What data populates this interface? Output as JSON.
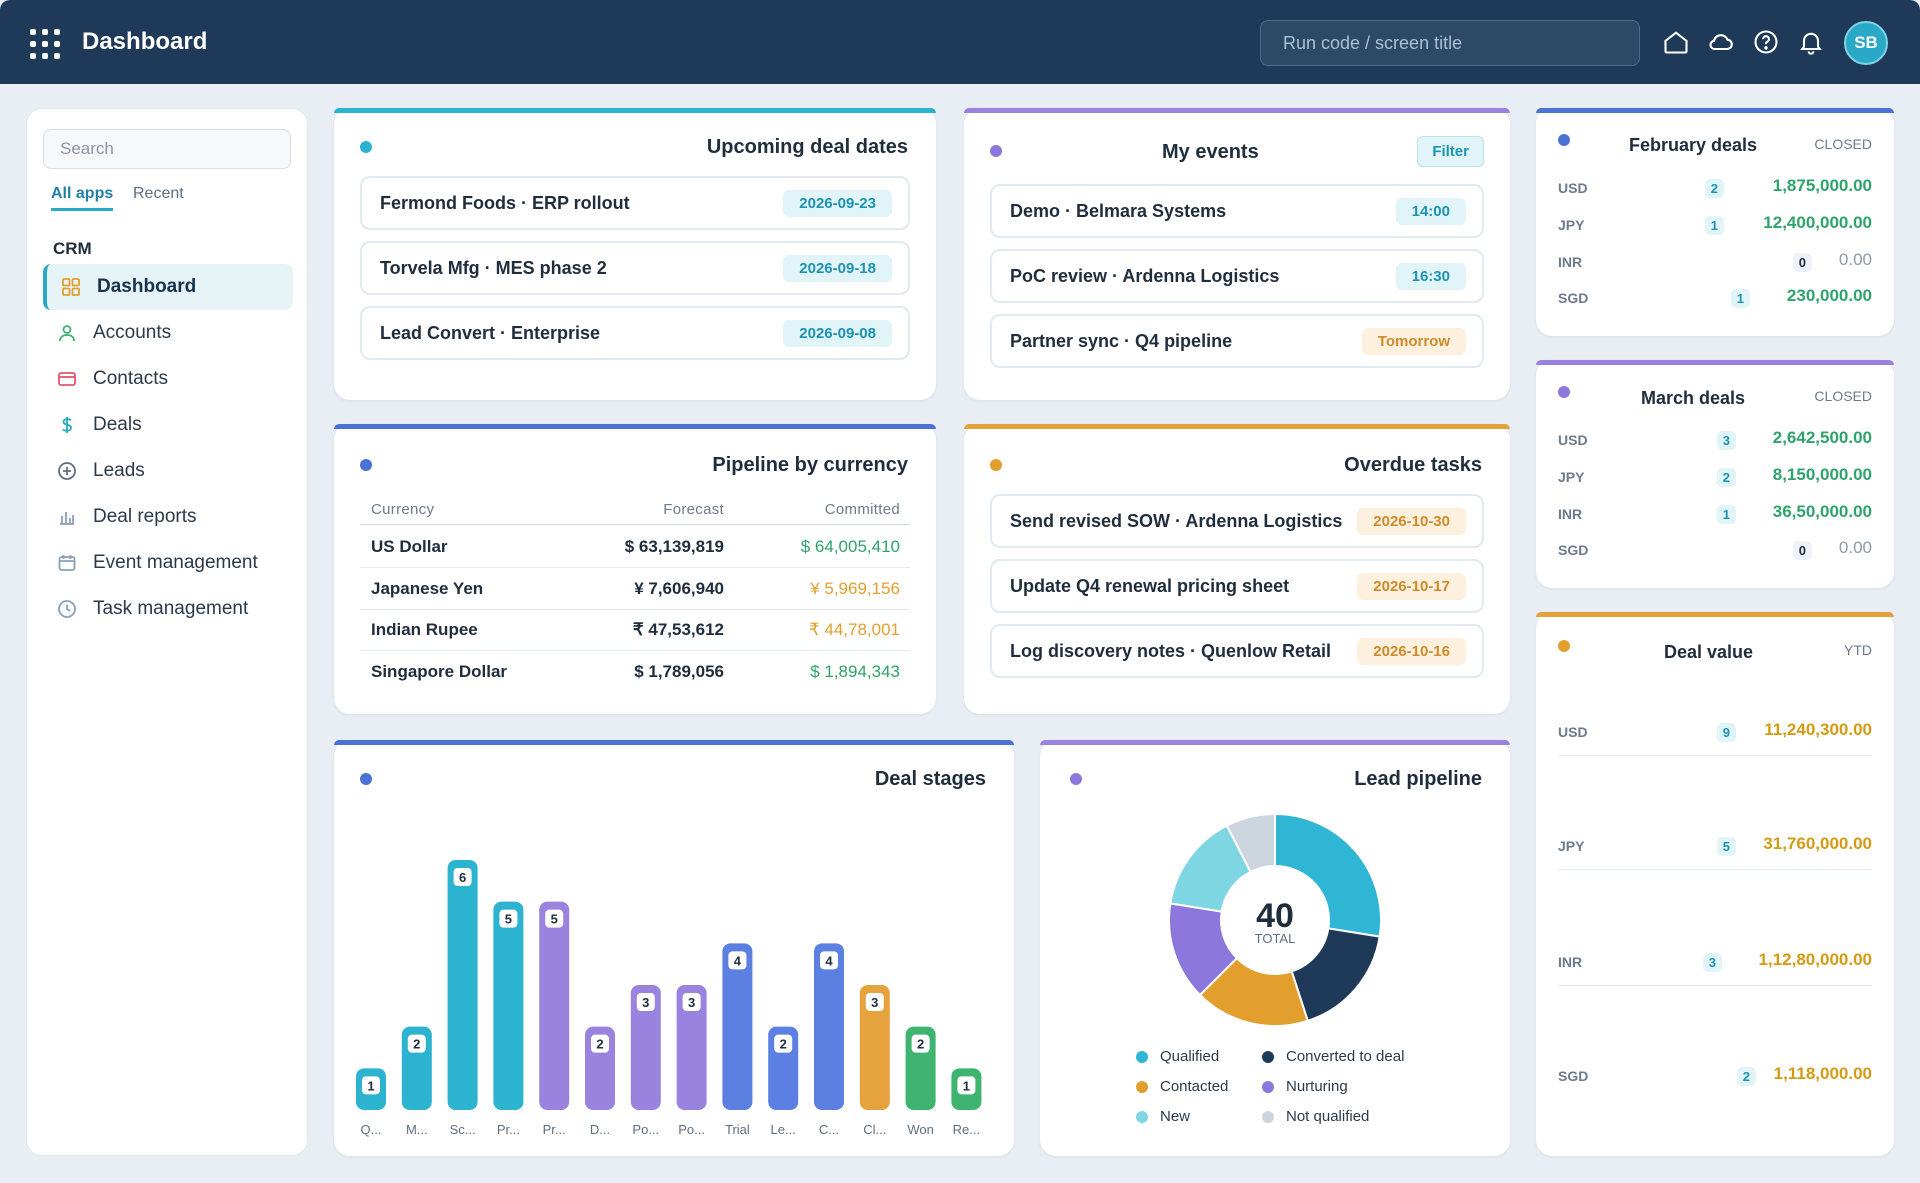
{
  "app": {
    "title": "Dashboard",
    "search_placeholder": "Run code / screen title",
    "avatar": "SB"
  },
  "sidebar": {
    "search_placeholder": "Search",
    "tabs": [
      "All apps",
      "Recent"
    ],
    "section": "CRM",
    "items": [
      {
        "label": "Dashboard",
        "icon": "dashboard-grid-icon",
        "active": true
      },
      {
        "label": "Accounts",
        "icon": "user-icon"
      },
      {
        "label": "Contacts",
        "icon": "contact-card-icon"
      },
      {
        "label": "Deals",
        "icon": "dollar-icon"
      },
      {
        "label": "Leads",
        "icon": "plus-circle-icon"
      },
      {
        "label": "Deal reports",
        "icon": "bar-chart-icon"
      },
      {
        "label": "Event management",
        "icon": "calendar-icon"
      },
      {
        "label": "Task management",
        "icon": "clock-icon"
      }
    ]
  },
  "upcoming": {
    "title": "Upcoming deal dates",
    "rows": [
      {
        "name": "Fermond Foods · ERP rollout",
        "date": "2026-09-23"
      },
      {
        "name": "Torvela Mfg · MES phase 2",
        "date": "2026-09-18"
      },
      {
        "name": "Lead Convert · Enterprise",
        "date": "2026-09-08"
      }
    ]
  },
  "events": {
    "title": "My events",
    "filter_label": "Filter",
    "rows": [
      {
        "name": "Demo · Belmara Systems",
        "time": "14:00"
      },
      {
        "name": "PoC review · Ardenna Logistics",
        "time": "16:30"
      },
      {
        "name": "Partner sync · Q4 pipeline",
        "time": "Tomorrow"
      }
    ]
  },
  "pipeline": {
    "title": "Pipeline by currency",
    "headers": [
      "Currency",
      "Forecast",
      "Committed"
    ],
    "rows": [
      {
        "currency": "US Dollar",
        "forecast": "$ 63,139,819",
        "committed": "$ 64,005,410"
      },
      {
        "currency": "Japanese Yen",
        "forecast": "¥ 7,606,940",
        "committed": "¥ 5,969,156"
      },
      {
        "currency": "Indian Rupee",
        "forecast": "₹ 47,53,612",
        "committed": "₹ 44,78,001"
      },
      {
        "currency": "Singapore Dollar",
        "forecast": "$ 1,789,056",
        "committed": "$ 1,894,343"
      }
    ]
  },
  "overdue": {
    "title": "Overdue tasks",
    "rows": [
      {
        "name": "Send revised SOW · Ardenna Logistics",
        "date": "2026-10-30"
      },
      {
        "name": "Update Q4 renewal pricing sheet",
        "date": "2026-10-17"
      },
      {
        "name": "Log discovery notes · Quenlow Retail",
        "date": "2026-10-16"
      }
    ]
  },
  "february": {
    "title": "February deals",
    "tag": "CLOSED",
    "rows": [
      {
        "code": "USD",
        "count": "2",
        "value": "1,875,000.00"
      },
      {
        "code": "JPY",
        "count": "1",
        "value": "12,400,000.00"
      },
      {
        "code": "INR",
        "count": "0",
        "value": "0.00"
      },
      {
        "code": "SGD",
        "count": "1",
        "value": "230,000.00"
      }
    ]
  },
  "march": {
    "title": "March deals",
    "tag": "CLOSED",
    "rows": [
      {
        "code": "USD",
        "count": "3",
        "value": "2,642,500.00"
      },
      {
        "code": "JPY",
        "count": "2",
        "value": "8,150,000.00"
      },
      {
        "code": "INR",
        "count": "1",
        "value": "36,50,000.00"
      },
      {
        "code": "SGD",
        "count": "0",
        "value": "0.00"
      }
    ]
  },
  "dealvalue": {
    "title": "Deal value",
    "tag": "YTD",
    "rows": [
      {
        "code": "USD",
        "count": "9",
        "value": "11,240,300.00"
      },
      {
        "code": "JPY",
        "count": "5",
        "value": "31,760,000.00"
      },
      {
        "code": "INR",
        "count": "3",
        "value": "1,12,80,000.00"
      },
      {
        "code": "SGD",
        "count": "2",
        "value": "1,118,000.00"
      }
    ]
  },
  "stages_title": "Deal stages",
  "lead_title": "Lead pipeline",
  "lead_total": "40",
  "lead_total_label": "TOTAL",
  "chart_data": [
    {
      "type": "bar",
      "title": "Deal stages",
      "categories": [
        "Q...",
        "M...",
        "Sc...",
        "Pr...",
        "Pr...",
        "D...",
        "Po...",
        "Po...",
        "Trial",
        "Le...",
        "C...",
        "Cl...",
        "Won",
        "Re..."
      ],
      "values": [
        1,
        2,
        6,
        5,
        5,
        2,
        3,
        3,
        4,
        2,
        4,
        3,
        2,
        1
      ],
      "colors": [
        "#2bb3cf",
        "#2bb3cf",
        "#2bb3cf",
        "#2bb3cf",
        "#9a83df",
        "#9a83df",
        "#9a83df",
        "#9a83df",
        "#5b80e2",
        "#5b80e2",
        "#5b80e2",
        "#e6a23c",
        "#3fb370",
        "#3fb370"
      ],
      "ylim": [
        0,
        6
      ]
    },
    {
      "type": "pie",
      "title": "Lead pipeline",
      "labels": [
        "Qualified",
        "Converted to deal",
        "Contacted",
        "Nurturing",
        "New",
        "Not qualified"
      ],
      "values": [
        11,
        7,
        7,
        6,
        6,
        3
      ],
      "colors": [
        "#2fb6d4",
        "#1e3a58",
        "#e39f2e",
        "#8c78dc",
        "#7fd6e3",
        "#cdd6df"
      ],
      "total": 40
    }
  ]
}
